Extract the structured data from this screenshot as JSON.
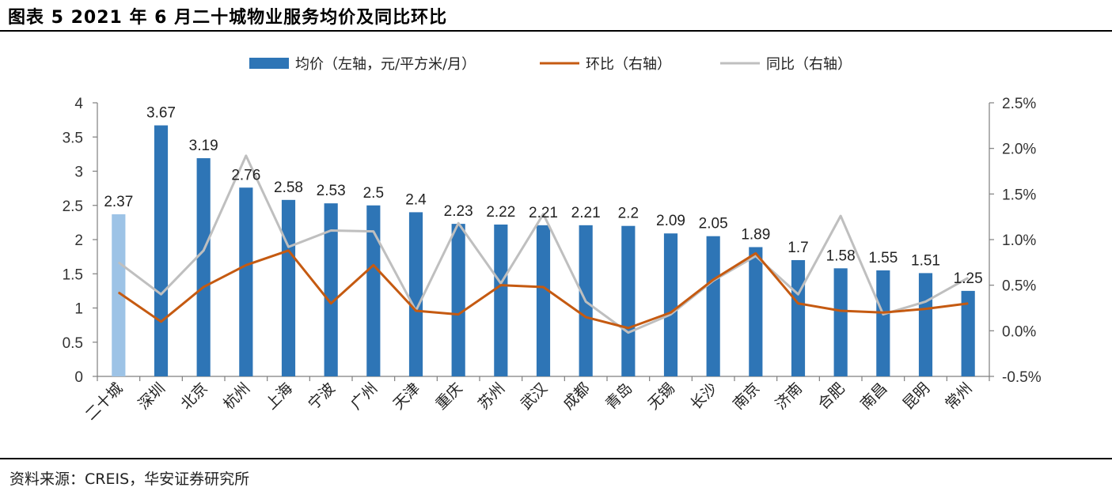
{
  "header": {
    "title": "图表 5   2021 年 6 月二十城物业服务均价及同比环比"
  },
  "footer": {
    "source": "资料来源：CREIS，华安证券研究所"
  },
  "colors": {
    "bar": "#2E75B6",
    "bar_highlight": "#9DC3E6",
    "mom_line": "#C55A11",
    "yoy_line": "#BFBFBF"
  },
  "chart_data": {
    "type": "bar",
    "categories": [
      "二十城",
      "深圳",
      "北京",
      "杭州",
      "上海",
      "宁波",
      "广州",
      "天津",
      "重庆",
      "苏州",
      "武汉",
      "成都",
      "青岛",
      "无锡",
      "长沙",
      "南京",
      "济南",
      "合肥",
      "南昌",
      "昆明",
      "常州"
    ],
    "series": [
      {
        "name": "均价（左轴，元/平方米/月）",
        "type": "bar",
        "axis": "left",
        "values": [
          2.37,
          3.67,
          3.19,
          2.76,
          2.58,
          2.53,
          2.5,
          2.4,
          2.23,
          2.22,
          2.21,
          2.21,
          2.2,
          2.09,
          2.05,
          1.89,
          1.7,
          1.58,
          1.55,
          1.51,
          1.25
        ],
        "labels": [
          "2.37",
          "3.67",
          "3.19",
          "2.76",
          "2.58",
          "2.53",
          "2.5",
          "2.4",
          "2.23",
          "2.22",
          "2.21",
          "2.21",
          "2.2",
          "2.09",
          "2.05",
          "1.89",
          "1.7",
          "1.58",
          "1.55",
          "1.51",
          "1.25"
        ]
      },
      {
        "name": "环比（右轴）",
        "type": "line",
        "axis": "right",
        "values": [
          0.42,
          0.1,
          0.48,
          0.72,
          0.88,
          0.3,
          0.72,
          0.22,
          0.18,
          0.5,
          0.48,
          0.15,
          0.03,
          0.2,
          0.56,
          0.85,
          0.3,
          0.22,
          0.2,
          0.24,
          0.3
        ]
      },
      {
        "name": "同比（右轴）",
        "type": "line",
        "axis": "right",
        "values": [
          0.75,
          0.4,
          0.88,
          1.92,
          0.92,
          1.1,
          1.09,
          0.22,
          1.18,
          0.52,
          1.28,
          0.32,
          -0.02,
          0.18,
          0.55,
          0.82,
          0.4,
          1.26,
          0.18,
          0.32,
          0.58
        ]
      }
    ],
    "y_left": {
      "range": [
        0,
        4
      ],
      "ticks": [
        0,
        0.5,
        1,
        1.5,
        2,
        2.5,
        3,
        3.5,
        4
      ],
      "tick_labels": [
        "0",
        "0.5",
        "1",
        "1.5",
        "2",
        "2.5",
        "3",
        "3.5",
        "4"
      ]
    },
    "y_right": {
      "range": [
        -0.5,
        2.5
      ],
      "ticks": [
        -0.5,
        0,
        0.5,
        1,
        1.5,
        2,
        2.5
      ],
      "tick_labels": [
        "-0.5%",
        "0.0%",
        "0.5%",
        "1.0%",
        "1.5%",
        "2.0%",
        "2.5%"
      ]
    },
    "grid": false,
    "legend_position": "top-center"
  }
}
